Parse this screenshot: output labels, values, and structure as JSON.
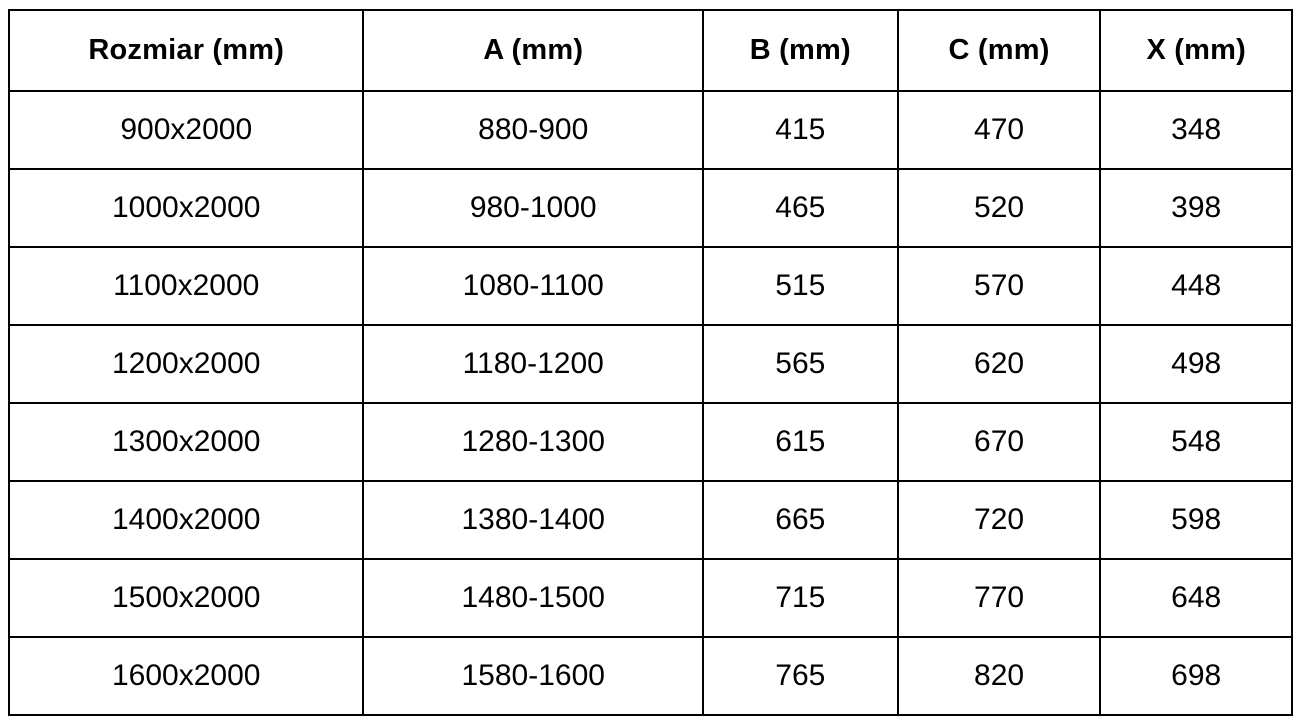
{
  "colors": {
    "border": "#000000",
    "text": "#000000",
    "background": "#ffffff"
  },
  "table": {
    "headers": [
      "Rozmiar (mm)",
      "A (mm)",
      "B (mm)",
      "C (mm)",
      "X (mm)"
    ],
    "rows": [
      [
        "900x2000",
        "880-900",
        "415",
        "470",
        "348"
      ],
      [
        "1000x2000",
        "980-1000",
        "465",
        "520",
        "398"
      ],
      [
        "1100x2000",
        "1080-1100",
        "515",
        "570",
        "448"
      ],
      [
        "1200x2000",
        "1180-1200",
        "565",
        "620",
        "498"
      ],
      [
        "1300x2000",
        "1280-1300",
        "615",
        "670",
        "548"
      ],
      [
        "1400x2000",
        "1380-1400",
        "665",
        "720",
        "598"
      ],
      [
        "1500x2000",
        "1480-1500",
        "715",
        "770",
        "648"
      ],
      [
        "1600x2000",
        "1580-1600",
        "765",
        "820",
        "698"
      ]
    ]
  }
}
